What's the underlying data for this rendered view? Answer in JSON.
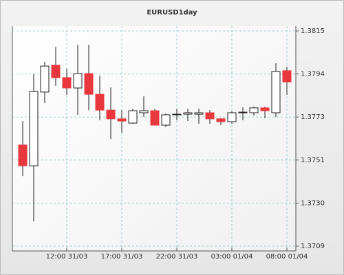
{
  "chart_data": {
    "type": "candlestick",
    "title": "EURUSD1day",
    "categories": [
      null,
      null,
      null,
      null,
      "12:00 31/03",
      null,
      null,
      null,
      null,
      "17:00 31/03",
      null,
      null,
      null,
      null,
      "22:00 31/03",
      null,
      null,
      null,
      null,
      "03:00 01/04",
      null,
      null,
      null,
      null,
      "08:00 01/04"
    ],
    "open": [
      1.37588,
      1.37486,
      1.37849,
      1.37981,
      1.3792,
      1.37869,
      1.3794,
      1.37838,
      1.3776,
      1.37717,
      1.37696,
      1.37747,
      1.37757,
      1.37686,
      1.37737,
      1.3774,
      1.3774,
      1.37747,
      1.37717,
      1.37703,
      1.37747,
      1.37747,
      1.37771,
      1.37747,
      1.37954
    ],
    "high": [
      1.37706,
      1.37937,
      1.37998,
      1.38072,
      1.37964,
      1.38082,
      1.38082,
      1.3793,
      1.37872,
      1.3776,
      1.37767,
      1.37828,
      1.37767,
      1.37744,
      1.37767,
      1.37767,
      1.37767,
      1.3776,
      1.3772,
      1.37754,
      1.37774,
      1.37777,
      1.37777,
      1.37991,
      1.37974
    ],
    "low": [
      1.37435,
      1.37212,
      1.37794,
      1.37879,
      1.37835,
      1.37737,
      1.3776,
      1.3771,
      1.37618,
      1.37649,
      1.37693,
      1.37727,
      1.37686,
      1.37676,
      1.3771,
      1.37706,
      1.37693,
      1.37693,
      1.37686,
      1.37693,
      1.3771,
      1.37733,
      1.3772,
      1.37727,
      1.37835
    ],
    "close": [
      1.37486,
      1.37852,
      1.37977,
      1.3792,
      1.37869,
      1.3794,
      1.37838,
      1.3776,
      1.37717,
      1.37706,
      1.37757,
      1.37757,
      1.37686,
      1.37737,
      1.3774,
      1.37747,
      1.37747,
      1.37717,
      1.37703,
      1.37747,
      1.3775,
      1.37771,
      1.37757,
      1.3795,
      1.37899
    ],
    "up_color": "#ffffff",
    "down_color": "#e8383d",
    "ylim": [
      1.3709,
      1.3815
    ],
    "yticks": [
      {
        "value": 1.3709,
        "label": "1.3709"
      },
      {
        "value": 1.37302,
        "label": "1.3730"
      },
      {
        "value": 1.37514,
        "label": "1.3751"
      },
      {
        "value": 1.37726,
        "label": "1.3773"
      },
      {
        "value": 1.37938,
        "label": "1.3794"
      },
      {
        "value": 1.3815,
        "label": "1.3815"
      }
    ],
    "grid": true
  }
}
